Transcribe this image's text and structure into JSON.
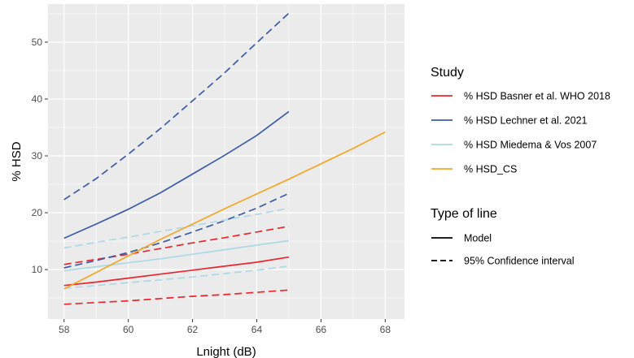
{
  "chart_data": {
    "type": "line",
    "xlabel": "Lnight (dB)",
    "ylabel": "% HSD",
    "xlim": [
      57.5,
      68.6
    ],
    "ylim": [
      1.3,
      56.7
    ],
    "xticks": [
      58,
      60,
      62,
      64,
      66,
      68
    ],
    "yticks": [
      10,
      20,
      30,
      40,
      50
    ],
    "grid": true,
    "legend_placement": "right",
    "legend_color_title": "Study",
    "legend_linetype_title": "Type of line",
    "series": [
      {
        "name": "% HSD Basner et al. WHO 2018",
        "color": "#e8262d",
        "model": {
          "x": [
            58,
            59,
            60,
            61,
            62,
            63,
            64,
            65
          ],
          "y": [
            7.2,
            7.8,
            8.5,
            9.2,
            9.9,
            10.6,
            11.3,
            12.2
          ]
        },
        "ci_lower": {
          "x": [
            58,
            59,
            60,
            61,
            62,
            63,
            64,
            65
          ],
          "y": [
            3.9,
            4.2,
            4.5,
            4.9,
            5.3,
            5.6,
            6.0,
            6.4
          ]
        },
        "ci_upper": {
          "x": [
            58,
            59,
            60,
            61,
            62,
            63,
            64,
            65
          ],
          "y": [
            10.9,
            11.8,
            12.7,
            13.7,
            14.7,
            15.6,
            16.6,
            17.6
          ]
        }
      },
      {
        "name": "% HSD Lechner et al. 2021",
        "color": "#3b5ba8",
        "model": {
          "x": [
            58,
            59,
            60,
            61,
            62,
            63,
            64,
            65
          ],
          "y": [
            15.5,
            18.0,
            20.6,
            23.5,
            26.8,
            30.1,
            33.6,
            37.8
          ]
        },
        "ci_lower": {
          "x": [
            58,
            59,
            60,
            61,
            62,
            63,
            64,
            65
          ],
          "y": [
            10.3,
            11.6,
            13.0,
            14.7,
            16.6,
            18.6,
            20.8,
            23.4
          ]
        },
        "ci_upper": {
          "x": [
            58,
            59,
            60,
            61,
            62,
            63,
            64,
            65
          ],
          "y": [
            22.3,
            26.0,
            30.3,
            34.8,
            39.7,
            44.6,
            49.9,
            55.1
          ]
        }
      },
      {
        "name": "% HSD Miedema & Vos 2007",
        "color": "#add8e6",
        "model": {
          "x": [
            58,
            59,
            60,
            61,
            62,
            63,
            64,
            65
          ],
          "y": [
            9.8,
            10.5,
            11.2,
            11.9,
            12.7,
            13.5,
            14.3,
            15.1
          ]
        },
        "ci_lower": {
          "x": [
            58,
            59,
            60,
            61,
            62,
            63,
            64,
            65
          ],
          "y": [
            6.7,
            7.2,
            7.7,
            8.2,
            8.7,
            9.3,
            9.9,
            10.6
          ]
        },
        "ci_upper": {
          "x": [
            58,
            59,
            60,
            61,
            62,
            63,
            64,
            65
          ],
          "y": [
            13.8,
            14.8,
            15.7,
            16.7,
            17.7,
            18.7,
            19.7,
            20.8
          ]
        }
      },
      {
        "name": "% HSD_CS",
        "color": "#f5a623",
        "model": {
          "x": [
            58,
            59,
            60,
            61,
            62,
            63,
            64,
            65,
            66,
            67,
            68
          ],
          "y": [
            6.6,
            9.5,
            12.4,
            15.3,
            18.0,
            20.7,
            23.3,
            25.9,
            28.6,
            31.3,
            34.2
          ]
        }
      }
    ],
    "linetypes": [
      {
        "label": "Model",
        "dash": "solid"
      },
      {
        "label": "95% Confidence interval",
        "dash": "dashed"
      }
    ]
  }
}
